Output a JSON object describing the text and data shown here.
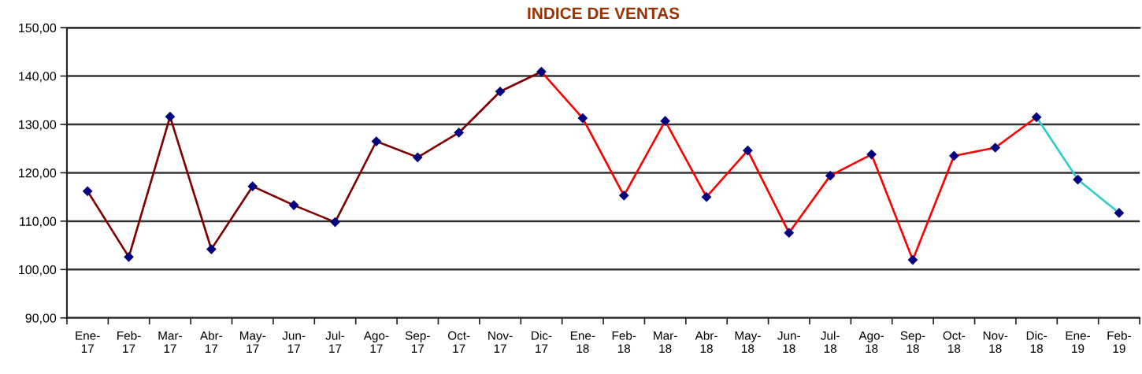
{
  "chart_data": {
    "type": "line",
    "title": "INDICE DE VENTAS",
    "categories": [
      "Ene-17",
      "Feb-17",
      "Mar-17",
      "Abr-17",
      "May-17",
      "Jun-17",
      "Jul-17",
      "Ago-17",
      "Sep-17",
      "Oct-17",
      "Nov-17",
      "Dic-17",
      "Ene-18",
      "Feb-18",
      "Mar-18",
      "Abr-18",
      "May-18",
      "Jun-18",
      "Jul-18",
      "Ago-18",
      "Sep-18",
      "Oct-18",
      "Nov-18",
      "Dic-18",
      "Ene-19",
      "Feb-19"
    ],
    "series": [
      {
        "color": "#800000",
        "values": [
          116.2,
          102.6,
          131.6,
          104.2,
          117.2,
          113.3,
          109.8,
          126.5,
          123.2,
          128.3,
          136.8,
          140.9,
          null,
          null,
          null,
          null,
          null,
          null,
          null,
          null,
          null,
          null,
          null,
          null,
          null,
          null
        ]
      },
      {
        "color": "#ff0000",
        "values": [
          null,
          null,
          null,
          null,
          null,
          null,
          null,
          null,
          null,
          null,
          null,
          140.9,
          131.3,
          115.3,
          130.7,
          115.0,
          124.6,
          107.6,
          119.4,
          123.8,
          102.0,
          123.5,
          125.2,
          131.5,
          null,
          null
        ]
      },
      {
        "color": "#33cccc",
        "values": [
          null,
          null,
          null,
          null,
          null,
          null,
          null,
          null,
          null,
          null,
          null,
          null,
          null,
          null,
          null,
          null,
          null,
          null,
          null,
          null,
          null,
          null,
          null,
          131.5,
          118.6,
          111.7
        ]
      },
      {
        "type": "scatter",
        "color": "#000080",
        "marker": "diamond",
        "values": [
          116.2,
          102.6,
          131.6,
          104.2,
          117.2,
          113.3,
          109.8,
          126.5,
          123.2,
          128.3,
          136.8,
          140.9,
          131.3,
          115.3,
          130.7,
          115.0,
          124.6,
          107.6,
          119.4,
          123.8,
          102.0,
          123.5,
          125.2,
          131.5,
          118.6,
          111.7
        ]
      }
    ],
    "ylim": [
      90,
      150
    ],
    "yticks": [
      {
        "value": 90,
        "label": "90,00"
      },
      {
        "value": 100,
        "label": "100,00"
      },
      {
        "value": 110,
        "label": "110,00"
      },
      {
        "value": 120,
        "label": "120,00"
      },
      {
        "value": 130,
        "label": "130,00"
      },
      {
        "value": 140,
        "label": "140,00"
      },
      {
        "value": 150,
        "label": "150,00"
      }
    ],
    "grid": "y",
    "line_style": "solid"
  }
}
